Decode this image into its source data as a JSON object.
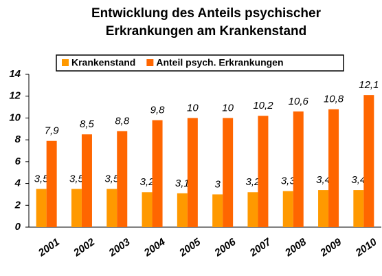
{
  "chart_data": {
    "type": "bar",
    "title": [
      "Entwicklung des Anteils psychischer",
      "Erkrankungen am Krankenstand"
    ],
    "categories": [
      "2001",
      "2002",
      "2003",
      "2004",
      "2005",
      "2006",
      "2007",
      "2008",
      "2009",
      "2010"
    ],
    "series": [
      {
        "name": "Krankenstand",
        "color": "#ff9900",
        "values": [
          3.5,
          3.5,
          3.5,
          3.2,
          3.1,
          3,
          3.2,
          3.3,
          3.4,
          3.4
        ],
        "value_labels": [
          "3,5",
          "3,5",
          "3,5",
          "3,2",
          "3,1",
          "3",
          "3,2",
          "3,3",
          "3,4",
          "3,4"
        ]
      },
      {
        "name": "Anteil psych. Erkrankungen",
        "color": "#ff6600",
        "values": [
          7.9,
          8.5,
          8.8,
          9.8,
          10,
          10,
          10.2,
          10.6,
          10.8,
          12.1
        ],
        "value_labels": [
          "7,9",
          "8,5",
          "8,8",
          "9,8",
          "10",
          "10",
          "10,2",
          "10,6",
          "10,8",
          "12,1"
        ]
      }
    ],
    "ylim": [
      0,
      14
    ],
    "yticks": [
      0,
      2,
      4,
      6,
      8,
      10,
      12,
      14
    ],
    "grid": false,
    "legend": "top"
  }
}
